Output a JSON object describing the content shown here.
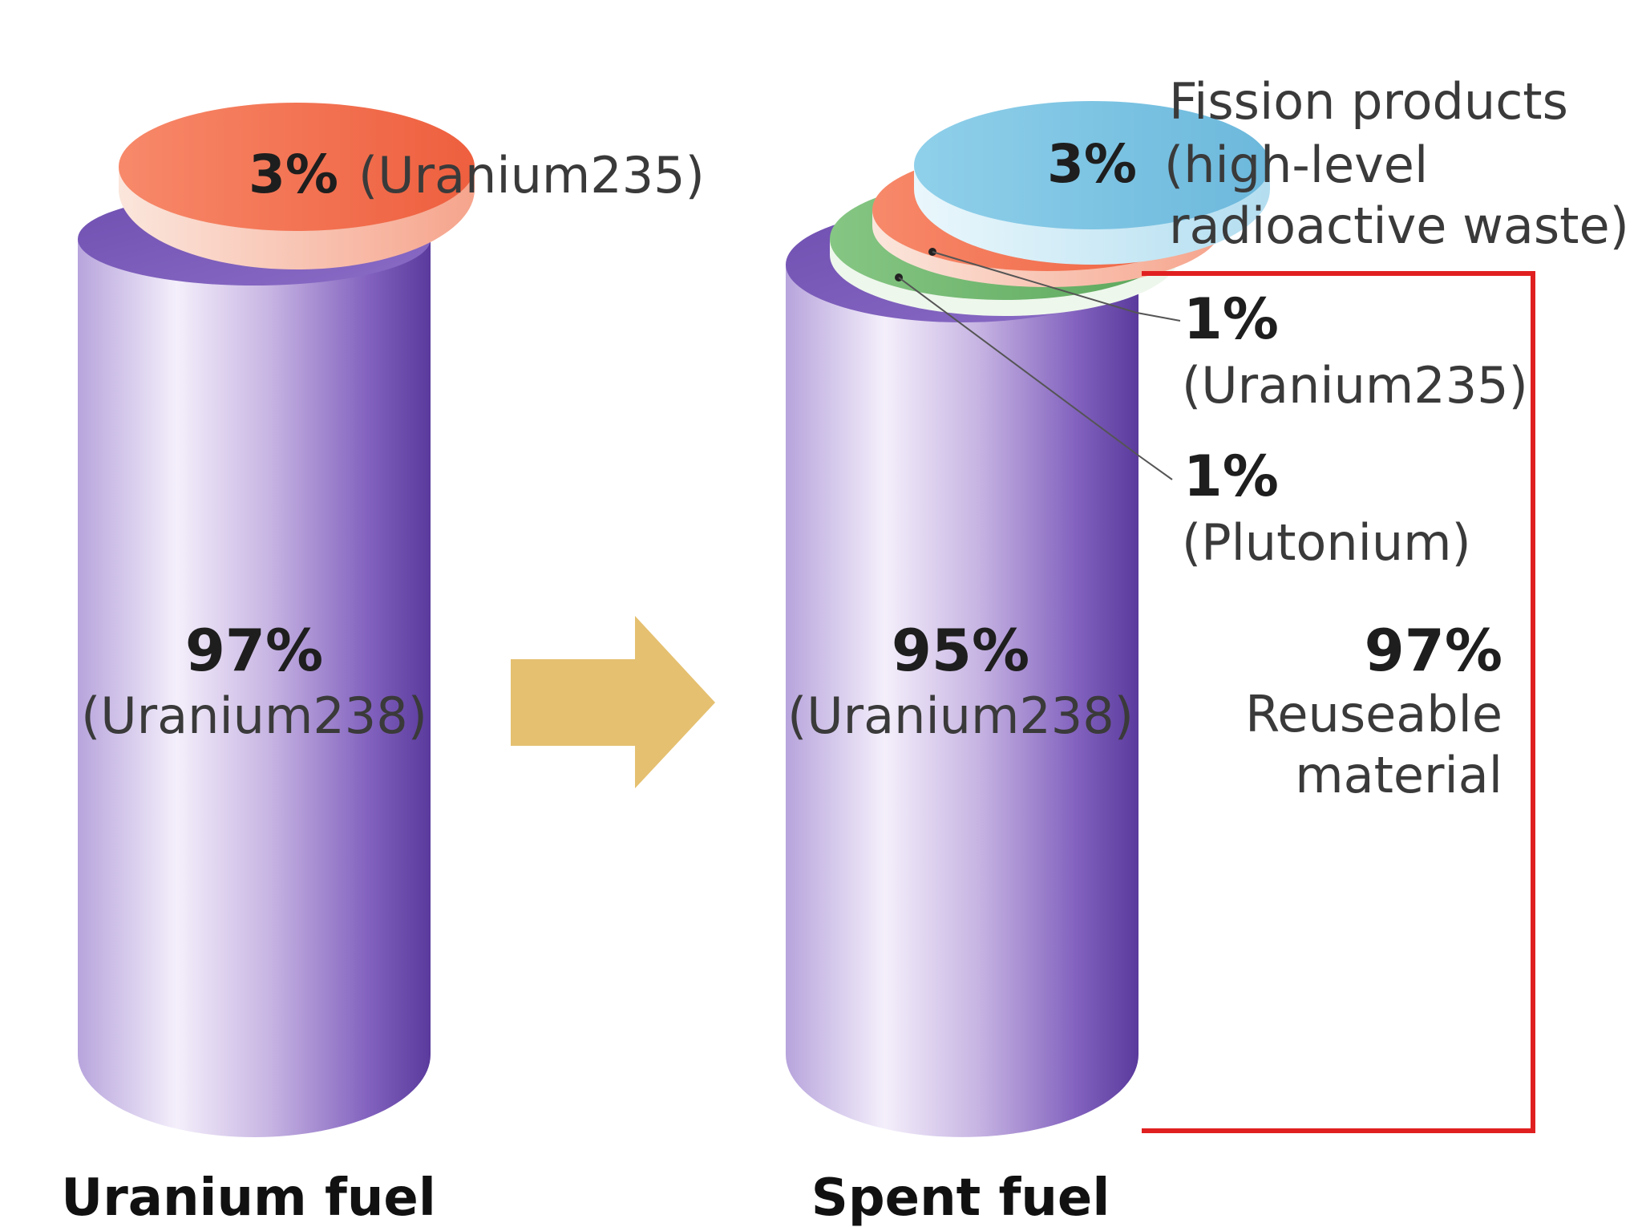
{
  "left_cylinder": {
    "caption": "Uranium fuel",
    "top_percent": "3%",
    "top_label": "(Uranium235)",
    "body_percent": "97%",
    "body_label": "(Uranium238)"
  },
  "right_cylinder": {
    "caption": "Spent fuel",
    "fission_percent": "3%",
    "fission_label_line1": "Fission products",
    "fission_label_line2": "(high-level",
    "fission_label_line3": "radioactive waste)",
    "u235_percent": "1%",
    "u235_label": "(Uranium235)",
    "plutonium_percent": "1%",
    "plutonium_label": "(Plutonium)",
    "body_percent": "95%",
    "body_label": "(Uranium238)"
  },
  "reusable": {
    "percent": "97%",
    "label_line1": "Reuseable",
    "label_line2": "material"
  },
  "colors": {
    "cylinder_dark": "#5b3d9e",
    "cylinder_light": "#f3eefa",
    "u235_disc": "#f26e4e",
    "plutonium_disc": "#6db56b",
    "fission_disc": "#7cc4e2",
    "arrow": "#e5c070",
    "bracket": "#e02020"
  },
  "icons": {
    "transition_arrow": "right-arrow-icon"
  }
}
